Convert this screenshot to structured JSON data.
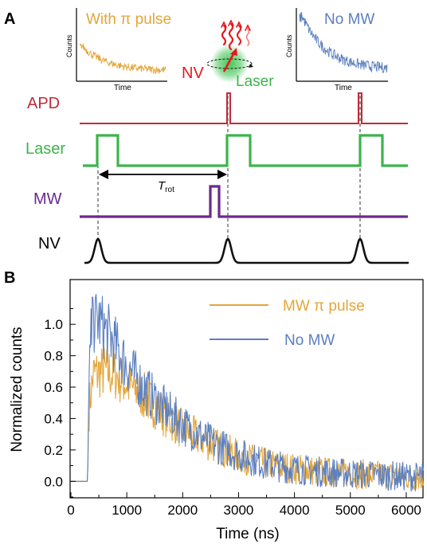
{
  "colors": {
    "apd": "#c02b3a",
    "laser": "#3cb44b",
    "mw": "#6a2a8c",
    "nv": "#111111",
    "with_pi": "#e3a63a",
    "no_mw": "#5b7fbf",
    "nv_label": "#e8161b",
    "glow": "#3cc24e"
  },
  "panel_a": {
    "label": "A",
    "inset_left": {
      "title": "With π pulse",
      "xlabel": "Time",
      "ylabel": "Counts"
    },
    "inset_right": {
      "title": "No MW",
      "xlabel": "Time",
      "ylabel": "Counts"
    },
    "nv_text": "NV",
    "laser_text": "Laser",
    "rows": {
      "apd": "APD",
      "laser": "Laser",
      "mw": "MW",
      "nv": "NV"
    },
    "trot_main": "T",
    "trot_sub": "rot"
  },
  "panel_b": {
    "label": "B"
  },
  "chart_data": {
    "type": "line",
    "xlabel": "Time (ns)",
    "ylabel": "Normalized counts",
    "xlim": [
      0,
      6300
    ],
    "ylim": [
      -0.1,
      1.28
    ],
    "x_ticks": [
      0,
      1000,
      2000,
      3000,
      4000,
      5000,
      6000
    ],
    "y_ticks": [
      0.0,
      0.2,
      0.4,
      0.6,
      0.8,
      1.0
    ],
    "y_tick_labels": [
      "0.0",
      "0.2",
      "0.4",
      "0.6",
      "0.8",
      "1.0"
    ],
    "legend_position": "top-right",
    "pulse_start": 320,
    "series": [
      {
        "name": "MW π pulse",
        "color": "#e3a63a",
        "x": [
          0,
          300,
          320,
          400,
          600,
          800,
          1000,
          1250,
          1500,
          1750,
          2000,
          2500,
          3000,
          3500,
          4000,
          4500,
          5000,
          5500,
          6000,
          6300
        ],
        "y": [
          0,
          0,
          0.45,
          0.68,
          0.7,
          0.68,
          0.62,
          0.56,
          0.48,
          0.4,
          0.33,
          0.24,
          0.16,
          0.11,
          0.08,
          0.06,
          0.05,
          0.04,
          0.03,
          0.03
        ]
      },
      {
        "name": "No MW",
        "color": "#5b7fbf",
        "x": [
          0,
          300,
          320,
          400,
          500,
          700,
          1000,
          1250,
          1500,
          1750,
          2000,
          2500,
          3000,
          3500,
          4000,
          4500,
          5000,
          5500,
          6000,
          6300
        ],
        "y": [
          0,
          0,
          0.6,
          1.02,
          1.02,
          0.92,
          0.74,
          0.62,
          0.52,
          0.44,
          0.36,
          0.25,
          0.17,
          0.11,
          0.08,
          0.06,
          0.05,
          0.04,
          0.03,
          0.03
        ]
      }
    ]
  }
}
